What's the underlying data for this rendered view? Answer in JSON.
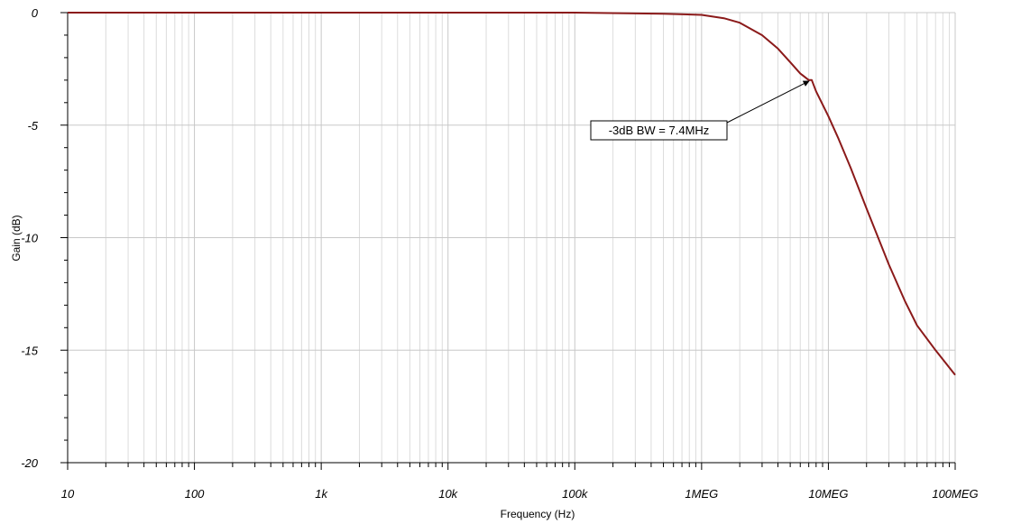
{
  "chart_data": {
    "type": "line",
    "title": "",
    "xlabel": "Frequency (Hz)",
    "ylabel": "Gain (dB)",
    "x_scale": "log",
    "xlim": [
      10,
      100000000
    ],
    "ylim": [
      -20,
      0
    ],
    "grid": true,
    "x_ticks": [
      {
        "value": 10,
        "label": "10"
      },
      {
        "value": 100,
        "label": "100"
      },
      {
        "value": 1000,
        "label": "1k"
      },
      {
        "value": 10000,
        "label": "10k"
      },
      {
        "value": 100000,
        "label": "100k"
      },
      {
        "value": 1000000,
        "label": "1MEG"
      },
      {
        "value": 10000000,
        "label": "10MEG"
      },
      {
        "value": 100000000,
        "label": "100MEG"
      }
    ],
    "y_ticks": [
      {
        "value": 0,
        "label": "0"
      },
      {
        "value": -5,
        "label": "-5"
      },
      {
        "value": -10,
        "label": "-10"
      },
      {
        "value": -15,
        "label": "-15"
      },
      {
        "value": -20,
        "label": "-20"
      }
    ],
    "series": [
      {
        "color": "#8b1a1a",
        "x": [
          10,
          100,
          1000,
          10000,
          100000,
          500000,
          1000000,
          1500000,
          2000000,
          3000000,
          4000000,
          5000000,
          6000000,
          7000000,
          7400000,
          8000000,
          10000000,
          12000000,
          15000000,
          20000000,
          30000000,
          40000000,
          50000000,
          70000000,
          100000000
        ],
        "y": [
          0,
          0,
          0,
          0,
          0,
          -0.05,
          -0.1,
          -0.25,
          -0.45,
          -1.0,
          -1.6,
          -2.2,
          -2.7,
          -3.0,
          -3.0,
          -3.5,
          -4.6,
          -5.6,
          -6.9,
          -8.7,
          -11.2,
          -12.8,
          -13.9,
          -15.0,
          -16.1
        ]
      }
    ],
    "annotations": [
      {
        "text": "-3dB BW = 7.4MHz",
        "x": 7400000,
        "y": -3.0,
        "color": "#000000"
      }
    ]
  }
}
